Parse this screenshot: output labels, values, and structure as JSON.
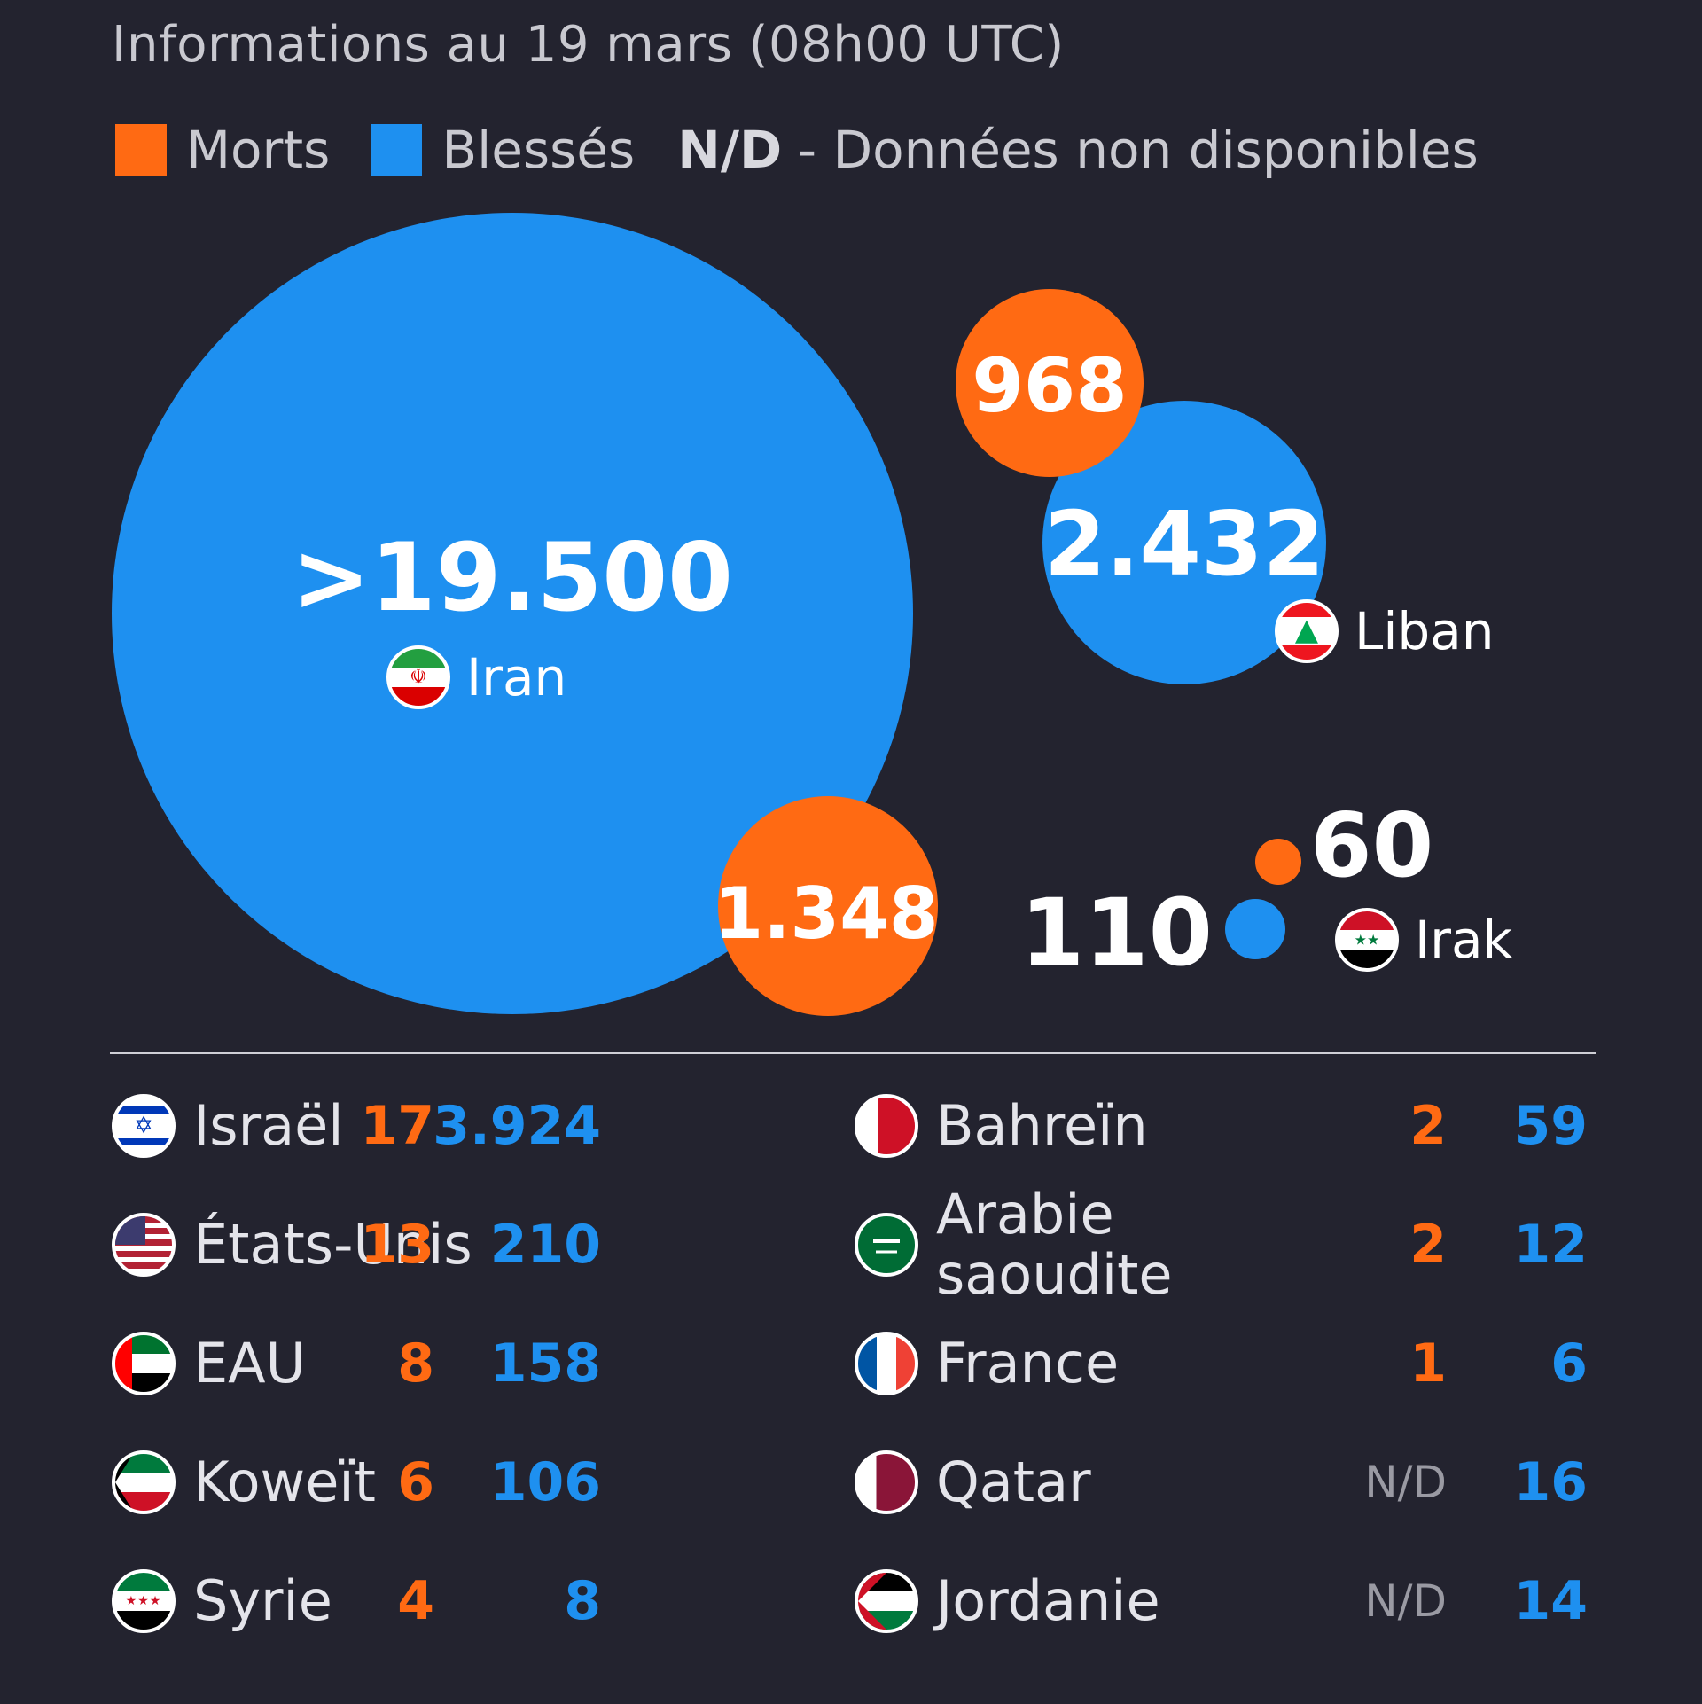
{
  "subtitle": "Informations au 19 mars (08h00 UTC)",
  "legend": {
    "deaths_label": "Morts",
    "injured_label": "Blessés",
    "nd_key": "N/D",
    "nd_text": "- Données non disponibles",
    "deaths_color": "#ff6a13",
    "injured_color": "#1e90f0"
  },
  "chart_data": {
    "type": "bubble",
    "series": [
      {
        "name": "Morts",
        "color": "#ff6a13"
      },
      {
        "name": "Blessés",
        "color": "#1e90f0"
      }
    ],
    "bubbles": [
      {
        "country": "Iran",
        "deaths": 1348,
        "deaths_label": "1.348",
        "injured": 19500,
        "injured_label": ">19.500"
      },
      {
        "country": "Liban",
        "deaths": 968,
        "deaths_label": "968",
        "injured": 2432,
        "injured_label": "2.432"
      },
      {
        "country": "Irak",
        "deaths": 60,
        "deaths_label": "60",
        "injured": 110,
        "injured_label": "110"
      }
    ],
    "table": {
      "left": [
        {
          "country": "Israël",
          "flag": "israel-flag-icon",
          "deaths": "17",
          "injured": "3.924"
        },
        {
          "country": "États-Unis",
          "flag": "usa-flag-icon",
          "deaths": "13",
          "injured": "210"
        },
        {
          "country": "EAU",
          "flag": "uae-flag-icon",
          "deaths": "8",
          "injured": "158"
        },
        {
          "country": "Koweït",
          "flag": "kuwait-flag-icon",
          "deaths": "6",
          "injured": "106"
        },
        {
          "country": "Syrie",
          "flag": "syria-flag-icon",
          "deaths": "4",
          "injured": "8"
        }
      ],
      "right": [
        {
          "country": "Bahreïn",
          "flag": "bahrain-flag-icon",
          "deaths": "2",
          "injured": "59"
        },
        {
          "country": "Arabie saoudite",
          "country_line1": "Arabie",
          "country_line2": "saoudite",
          "flag": "saudi-flag-icon",
          "deaths": "2",
          "injured": "12"
        },
        {
          "country": "France",
          "flag": "france-flag-icon",
          "deaths": "1",
          "injured": "6"
        },
        {
          "country": "Qatar",
          "flag": "qatar-flag-icon",
          "deaths": "N/D",
          "injured": "16"
        },
        {
          "country": "Jordanie",
          "flag": "jordan-flag-icon",
          "deaths": "N/D",
          "injured": "14"
        }
      ]
    }
  }
}
